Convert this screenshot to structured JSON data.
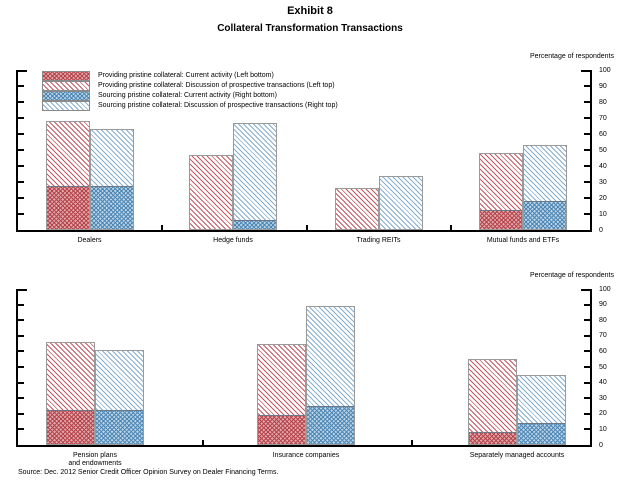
{
  "title": "Exhibit 8",
  "subtitle": "Collateral Transformation Transactions",
  "source": "Source: Dec. 2012 Senior Credit Officer Opinion Survey on Dealer Financing Terms.",
  "colors": {
    "providing_red": "#b5444c",
    "sourcing_blue": "#4f87b5",
    "bar_border": "#9a9a9a",
    "axis": "#000000"
  },
  "legend": [
    {
      "swatch": "red-dense-crosshatch",
      "label": "Providing pristine collateral:  Current activity (Left bottom)"
    },
    {
      "swatch": "red-diagonal-hatch",
      "label": "Providing pristine collateral:  Discussion of prospective transactions (Left top)"
    },
    {
      "swatch": "blue-dense-crosshatch",
      "label": "Sourcing pristine collateral:  Current activity (Right bottom)"
    },
    {
      "swatch": "blue-diagonal-hatch",
      "label": "Sourcing pristine collateral:  Discussion of prospective transactions (Right top)"
    }
  ],
  "chart_data": [
    {
      "type": "bar",
      "panel": "top",
      "ylabel": "Percentage of respondents",
      "ylim": [
        0,
        100
      ],
      "yticks": [
        0,
        10,
        20,
        30,
        40,
        50,
        60,
        70,
        80,
        90,
        100
      ],
      "legend_position": "upper-left-inside",
      "grid": false,
      "categories": [
        "Dealers",
        "Hedge funds",
        "Trading REITs",
        "Mutual funds and ETFs"
      ],
      "groups": [
        {
          "category": "Dealers",
          "providing_left": {
            "total": 68,
            "current_activity_bottom": 26
          },
          "sourcing_right": {
            "total": 63,
            "current_activity_bottom": 26
          }
        },
        {
          "category": "Hedge funds",
          "providing_left": {
            "total": 47,
            "current_activity_bottom": 0
          },
          "sourcing_right": {
            "total": 67,
            "current_activity_bottom": 5
          }
        },
        {
          "category": "Trading REITs",
          "providing_left": {
            "total": 26,
            "current_activity_bottom": 0
          },
          "sourcing_right": {
            "total": 34,
            "current_activity_bottom": 0
          }
        },
        {
          "category": "Mutual funds and ETFs",
          "providing_left": {
            "total": 48,
            "current_activity_bottom": 11
          },
          "sourcing_right": {
            "total": 53,
            "current_activity_bottom": 17
          }
        }
      ]
    },
    {
      "type": "bar",
      "panel": "bottom",
      "ylabel": "Percentage of respondents",
      "ylim": [
        0,
        100
      ],
      "yticks": [
        0,
        10,
        20,
        30,
        40,
        50,
        60,
        70,
        80,
        90,
        100
      ],
      "grid": false,
      "categories": [
        "Pension plans\nand endowments",
        "Insurance companies",
        "Separately managed accounts"
      ],
      "groups": [
        {
          "category": "Pension plans\nand endowments",
          "providing_left": {
            "total": 66,
            "current_activity_bottom": 21
          },
          "sourcing_right": {
            "total": 61,
            "current_activity_bottom": 21
          }
        },
        {
          "category": "Insurance companies",
          "providing_left": {
            "total": 65,
            "current_activity_bottom": 18
          },
          "sourcing_right": {
            "total": 89,
            "current_activity_bottom": 24
          }
        },
        {
          "category": "Separately managed accounts",
          "providing_left": {
            "total": 55,
            "current_activity_bottom": 7
          },
          "sourcing_right": {
            "total": 45,
            "current_activity_bottom": 13
          }
        }
      ]
    }
  ]
}
